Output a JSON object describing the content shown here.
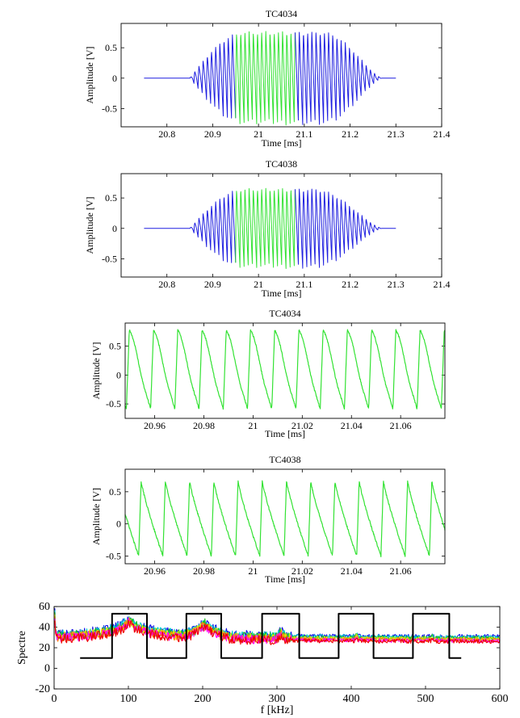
{
  "chart_data": [
    {
      "type": "line",
      "title": "TC4034",
      "xlabel": "Time [ms]",
      "ylabel": "Amplitude [V]",
      "xlim": [
        20.7,
        21.4
      ],
      "ylim": [
        -0.8,
        0.9
      ],
      "xticks": [
        "20.8",
        "20.9",
        "21",
        "21.1",
        "21.2",
        "21.3",
        "21.4"
      ],
      "yticks": [
        "0.5",
        "0",
        "-0.5"
      ],
      "x_start": 20.75,
      "x_end": 21.3,
      "burst_start": 20.85,
      "rise_end": 20.97,
      "decay_start": 21.14,
      "burst_end": 21.27,
      "amplitude": 0.77,
      "cycles": 46,
      "highlight_window": [
        20.95,
        21.08
      ],
      "series": [
        {
          "color": "#1f1fe0"
        },
        {
          "color": "#33e233"
        }
      ]
    },
    {
      "type": "line",
      "title": "TC4038",
      "xlabel": "Time [ms]",
      "ylabel": "Amplitude [V]",
      "xlim": [
        20.7,
        21.4
      ],
      "ylim": [
        -0.8,
        0.9
      ],
      "xticks": [
        "20.8",
        "20.9",
        "21",
        "21.1",
        "21.2",
        "21.3",
        "21.4"
      ],
      "yticks": [
        "0.5",
        "0",
        "-0.5"
      ],
      "x_start": 20.75,
      "x_end": 21.3,
      "burst_start": 20.85,
      "rise_end": 20.97,
      "decay_start": 21.12,
      "burst_end": 21.27,
      "amplitude": 0.66,
      "cycles": 46,
      "highlight_window": [
        20.95,
        21.08
      ],
      "series": [
        {
          "color": "#1f1fe0"
        },
        {
          "color": "#33e233"
        }
      ]
    },
    {
      "type": "line",
      "title": "TC4034",
      "xlabel": "Time [ms]",
      "ylabel": "Amplitude [V]",
      "xlim": [
        20.948,
        21.078
      ],
      "ylim": [
        -0.75,
        0.9
      ],
      "xticks": [
        "20.96",
        "20.98",
        "21",
        "21.02",
        "21.04",
        "21.06"
      ],
      "yticks": [
        "0.5",
        "0",
        "-0.5"
      ],
      "period": 0.00985,
      "phase": 20.9485,
      "max": 0.78,
      "min": -0.59,
      "series": [
        {
          "color": "#33e233"
        }
      ]
    },
    {
      "type": "line",
      "title": "TC4038",
      "xlabel": "Time [ms]",
      "ylabel": "Amplitude [V]",
      "xlim": [
        20.948,
        21.078
      ],
      "ylim": [
        -0.62,
        0.85
      ],
      "xticks": [
        "20.96",
        "20.98",
        "21",
        "21.02",
        "21.04",
        "21.06"
      ],
      "yticks": [
        "0.5",
        "0",
        "-0.5"
      ],
      "period": 0.00985,
      "phase": 20.9535,
      "max": 0.67,
      "min": -0.5,
      "series": [
        {
          "color": "#33e233"
        }
      ]
    },
    {
      "type": "line",
      "xlabel": "f [kHz]",
      "ylabel": "Spectre",
      "xlim": [
        0,
        600
      ],
      "ylim": [
        -20,
        60
      ],
      "xticks": [
        "0",
        "100",
        "200",
        "300",
        "400",
        "500",
        "600"
      ],
      "yticks": [
        "60",
        "40",
        "20",
        "0",
        "-20"
      ],
      "peaks_khz": [
        101,
        203,
        305,
        407,
        509
      ],
      "peak_levels": [
        49,
        46,
        37,
        34,
        33
      ],
      "gate_windows_khz": [
        [
          78,
          125
        ],
        [
          178,
          225
        ],
        [
          280,
          330
        ],
        [
          383,
          430
        ],
        [
          483,
          532
        ]
      ],
      "gate_low": 10,
      "gate_high": 53,
      "gate_line_range": [
        35,
        548
      ],
      "series": [
        {
          "color": "#1010e8"
        },
        {
          "color": "#00d0d0"
        },
        {
          "color": "#20c020"
        },
        {
          "color": "#e8e800"
        },
        {
          "color": "#ff8c00"
        },
        {
          "color": "#ff00ff"
        },
        {
          "color": "#ee0000"
        },
        {
          "color": "#000000"
        }
      ]
    }
  ]
}
